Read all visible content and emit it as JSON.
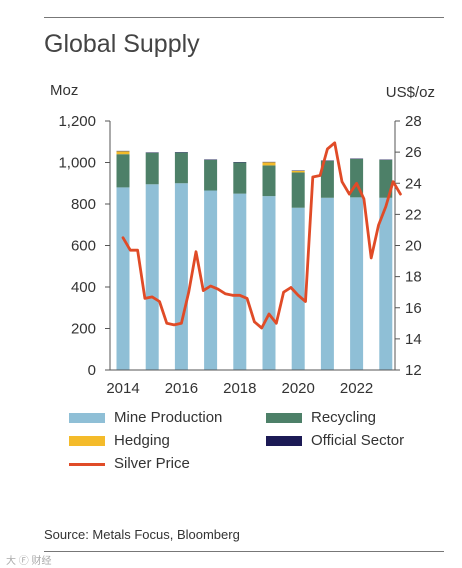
{
  "title": "Global Supply",
  "source": "Source: Metals Focus, Bloomberg",
  "watermark": "大 Ⓕ 财经",
  "chart_data": {
    "type": "bar",
    "stacked": true,
    "categories": [
      "2014",
      "2015",
      "2016",
      "2017",
      "2018",
      "2019",
      "2020",
      "2021",
      "2022",
      "2023"
    ],
    "xtick_labels": [
      "2014",
      "2016",
      "2018",
      "2020",
      "2022"
    ],
    "left_axis": {
      "label": "Moz",
      "ylim": [
        0,
        1200
      ],
      "ticks": [
        0,
        200,
        400,
        600,
        800,
        1000,
        1200
      ],
      "tick_labels": [
        "0",
        "200",
        "400",
        "600",
        "800",
        "1,000",
        "1,200"
      ]
    },
    "right_axis": {
      "label": "US$/oz",
      "ylim": [
        12,
        28
      ],
      "ticks": [
        12,
        14,
        16,
        18,
        20,
        22,
        24,
        26,
        28
      ],
      "tick_labels": [
        "12",
        "14",
        "16",
        "18",
        "20",
        "22",
        "24",
        "26",
        "28"
      ]
    },
    "series": [
      {
        "name": "Mine Production",
        "color": "#8fbfd6",
        "values": [
          880,
          895,
          900,
          865,
          850,
          838,
          782,
          830,
          832,
          830
        ]
      },
      {
        "name": "Recycling",
        "color": "#4d8068",
        "values": [
          160,
          152,
          148,
          148,
          150,
          148,
          170,
          178,
          185,
          182
        ]
      },
      {
        "name": "Hedging",
        "color": "#f4bb2a",
        "values": [
          14,
          0,
          0,
          0,
          0,
          15,
          8,
          0,
          0,
          0
        ]
      },
      {
        "name": "Official Sector",
        "color": "#1c1a55",
        "values": [
          2,
          2,
          2,
          2,
          2,
          2,
          2,
          2,
          2,
          2
        ]
      }
    ],
    "line_series": {
      "name": "Silver Price",
      "color": "#e04b27",
      "axis": "right",
      "x": [
        2014.0,
        2014.25,
        2014.5,
        2014.75,
        2015.0,
        2015.25,
        2015.5,
        2015.75,
        2016.0,
        2016.25,
        2016.5,
        2016.75,
        2017.0,
        2017.25,
        2017.5,
        2017.75,
        2018.0,
        2018.25,
        2018.5,
        2018.75,
        2019.0,
        2019.25,
        2019.5,
        2019.75,
        2020.0,
        2020.25,
        2020.5,
        2020.75,
        2021.0,
        2021.25,
        2021.5,
        2021.75,
        2022.0,
        2022.25,
        2022.5,
        2022.75,
        2023.0,
        2023.25,
        2023.5
      ],
      "values": [
        20.5,
        19.7,
        19.7,
        16.6,
        16.7,
        16.4,
        15.0,
        14.9,
        15.0,
        17.0,
        19.6,
        17.1,
        17.4,
        17.2,
        16.9,
        16.8,
        16.8,
        16.6,
        15.1,
        14.7,
        15.6,
        15.0,
        17.0,
        17.3,
        16.8,
        16.4,
        24.4,
        24.5,
        26.2,
        26.6,
        24.1,
        23.3,
        24.0,
        23.0,
        19.2,
        21.3,
        22.5,
        24.1,
        23.3
      ]
    },
    "legend": {
      "placement": "bottom",
      "items": [
        {
          "label": "Mine Production",
          "kind": "bar",
          "color": "#8fbfd6"
        },
        {
          "label": "Recycling",
          "kind": "bar",
          "color": "#4d8068"
        },
        {
          "label": "Hedging",
          "kind": "bar",
          "color": "#f4bb2a"
        },
        {
          "label": "Official Sector",
          "kind": "bar",
          "color": "#1c1a55"
        },
        {
          "label": "Silver Price",
          "kind": "line",
          "color": "#e04b27"
        }
      ]
    }
  }
}
